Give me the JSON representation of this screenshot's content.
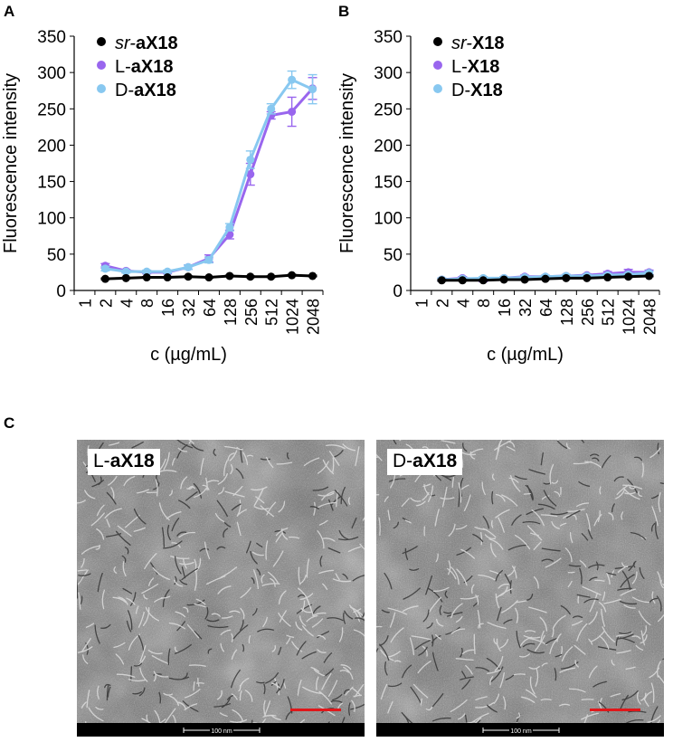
{
  "panels": {
    "a": "A",
    "b": "B",
    "c": "C"
  },
  "legend_a": [
    {
      "prefix": "sr-",
      "prefix_italic": true,
      "name": "aX18",
      "color": "#000000"
    },
    {
      "prefix": "L-",
      "prefix_italic": false,
      "name": "aX18",
      "color": "#9966ee"
    },
    {
      "prefix": "D-",
      "prefix_italic": false,
      "name": "aX18",
      "color": "#88c8f0"
    }
  ],
  "legend_b": [
    {
      "prefix": "sr-",
      "prefix_italic": true,
      "name": "X18",
      "color": "#000000"
    },
    {
      "prefix": "L-",
      "prefix_italic": false,
      "name": "X18",
      "color": "#9966ee"
    },
    {
      "prefix": "D-",
      "prefix_italic": false,
      "name": "X18",
      "color": "#88c8f0"
    }
  ],
  "chart_data": [
    {
      "type": "line",
      "panel": "A",
      "xlabel": "c (µg/mL)",
      "ylabel": "Fluorescence intensity",
      "categories": [
        "1",
        "2",
        "4",
        "8",
        "16",
        "32",
        "64",
        "128",
        "256",
        "512",
        "1024",
        "2048"
      ],
      "ylim": [
        0,
        350
      ],
      "yticks": [
        0,
        50,
        100,
        150,
        200,
        250,
        300,
        350
      ],
      "grid": false,
      "legend_position": "top-left",
      "series": [
        {
          "name": "sr-aX18",
          "color": "#000000",
          "x": [
            "2",
            "4",
            "8",
            "16",
            "32",
            "64",
            "128",
            "256",
            "512",
            "1024",
            "2048"
          ],
          "values": [
            16,
            17,
            18,
            18,
            19,
            18,
            20,
            19,
            19,
            21,
            20
          ],
          "errors": [
            1,
            1,
            1,
            1,
            1,
            1,
            1,
            1,
            1,
            1,
            1
          ]
        },
        {
          "name": "L-aX18",
          "color": "#9966ee",
          "x": [
            "2",
            "4",
            "8",
            "16",
            "32",
            "64",
            "128",
            "256",
            "512",
            "1024",
            "2048"
          ],
          "values": [
            34,
            27,
            25,
            25,
            32,
            44,
            77,
            160,
            241,
            246,
            278
          ],
          "errors": [
            3,
            2,
            2,
            2,
            3,
            5,
            6,
            15,
            5,
            20,
            15
          ]
        },
        {
          "name": "D-aX18",
          "color": "#88c8f0",
          "x": [
            "2",
            "4",
            "8",
            "16",
            "32",
            "64",
            "128",
            "256",
            "512",
            "1024",
            "2048"
          ],
          "values": [
            30,
            26,
            26,
            26,
            32,
            42,
            87,
            180,
            250,
            290,
            277
          ],
          "errors": [
            3,
            2,
            2,
            2,
            3,
            4,
            5,
            12,
            7,
            12,
            20
          ]
        }
      ]
    },
    {
      "type": "line",
      "panel": "B",
      "xlabel": "c (µg/mL)",
      "ylabel": "Fluorescence intensity",
      "categories": [
        "1",
        "2",
        "4",
        "8",
        "16",
        "32",
        "64",
        "128",
        "256",
        "512",
        "1024",
        "2048"
      ],
      "ylim": [
        0,
        350
      ],
      "yticks": [
        0,
        50,
        100,
        150,
        200,
        250,
        300,
        350
      ],
      "grid": false,
      "legend_position": "top-left",
      "series": [
        {
          "name": "sr-X18",
          "color": "#000000",
          "x": [
            "2",
            "4",
            "8",
            "16",
            "32",
            "64",
            "128",
            "256",
            "512",
            "1024",
            "2048"
          ],
          "values": [
            14,
            14,
            14,
            15,
            15,
            16,
            17,
            17,
            18,
            19,
            20
          ],
          "errors": [
            1,
            1,
            1,
            1,
            1,
            1,
            1,
            1,
            1,
            1,
            1
          ]
        },
        {
          "name": "L-X18",
          "color": "#9966ee",
          "x": [
            "2",
            "4",
            "8",
            "16",
            "32",
            "64",
            "128",
            "256",
            "512",
            "1024",
            "2048"
          ],
          "values": [
            15,
            17,
            15,
            17,
            19,
            19,
            20,
            21,
            23,
            25,
            25
          ],
          "errors": [
            2,
            2,
            3,
            2,
            2,
            2,
            2,
            2,
            3,
            4,
            3
          ]
        },
        {
          "name": "D-X18",
          "color": "#88c8f0",
          "x": [
            "2",
            "4",
            "8",
            "16",
            "32",
            "64",
            "128",
            "256",
            "512",
            "1024",
            "2048"
          ],
          "values": [
            15,
            16,
            17,
            17,
            18,
            19,
            20,
            20,
            21,
            22,
            24
          ],
          "errors": [
            2,
            2,
            2,
            2,
            2,
            2,
            2,
            2,
            2,
            2,
            2
          ]
        }
      ]
    }
  ],
  "micrographs": [
    {
      "prefix": "L-",
      "name": "aX18",
      "scale_text": "100 nm"
    },
    {
      "prefix": "D-",
      "name": "aX18",
      "scale_text": "100 nm"
    }
  ]
}
